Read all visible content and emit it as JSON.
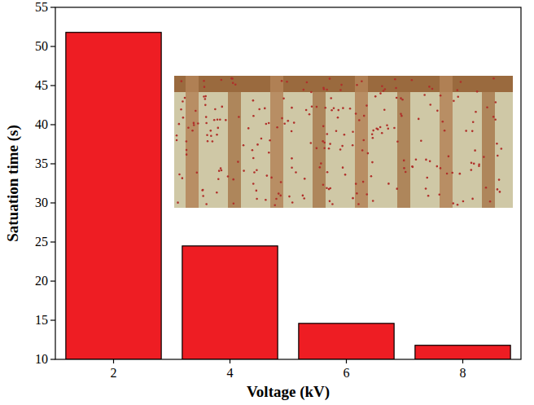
{
  "chart_data": {
    "type": "bar",
    "x_label": "Voltage (kV)",
    "y_label": "Satuation time (s)",
    "categories": [
      "2",
      "4",
      "6",
      "8"
    ],
    "values": [
      51.8,
      24.5,
      14.6,
      11.8
    ],
    "color": "#ee1d23",
    "ylim": [
      10,
      55
    ],
    "yticks": [
      10,
      15,
      20,
      25,
      30,
      35,
      40,
      45,
      50,
      55
    ]
  }
}
